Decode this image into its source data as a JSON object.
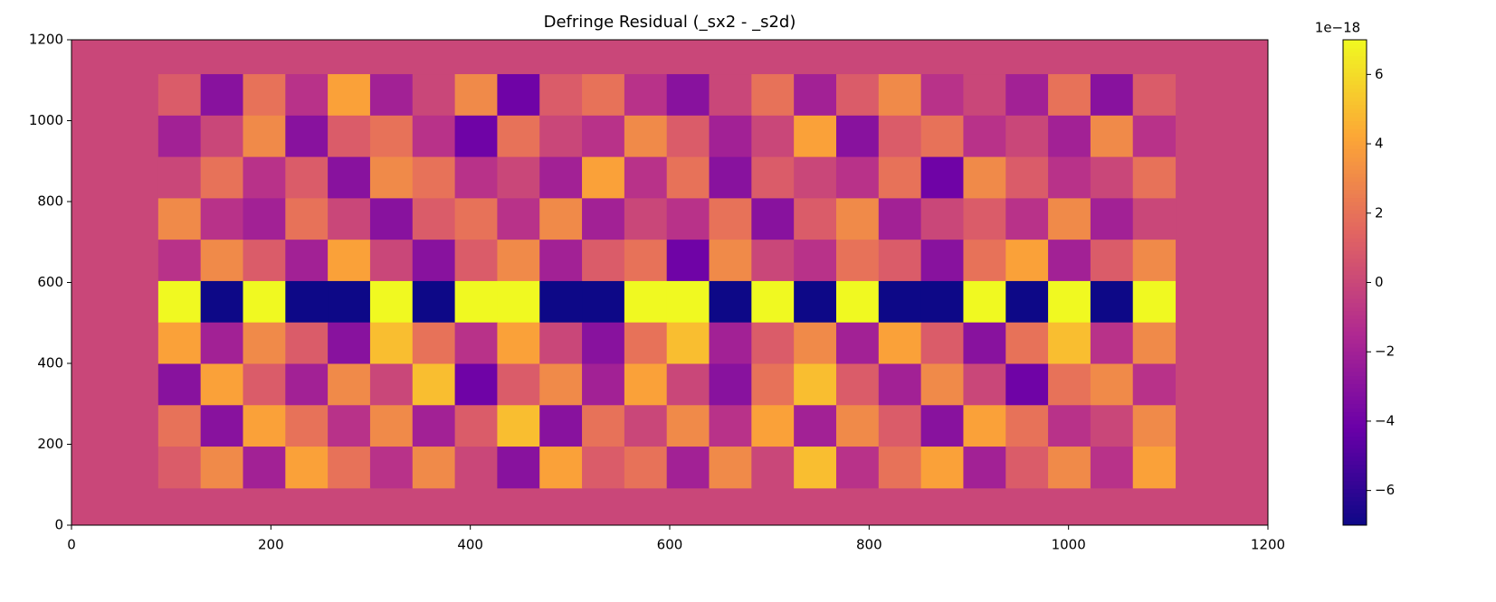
{
  "chart_data": {
    "type": "heatmap",
    "title": "Defringe Residual (_sx2 - _s2d)",
    "xlim": [
      0,
      1200
    ],
    "ylim": [
      0,
      1200
    ],
    "xticks": [
      0,
      200,
      400,
      600,
      800,
      1000,
      1200
    ],
    "yticks": [
      0,
      200,
      400,
      600,
      800,
      1000,
      1200
    ],
    "background_value": 0,
    "z_extent": [
      87,
      1107,
      92,
      1115
    ],
    "z": [
      [
        1,
        -3,
        2,
        -1,
        4,
        -2,
        0,
        3,
        -4,
        1,
        2,
        -1,
        -3,
        0,
        2,
        -2,
        1,
        3,
        -1,
        0,
        -2,
        2,
        -3,
        1
      ],
      [
        -2,
        0,
        3,
        -3,
        1,
        2,
        -1,
        -4,
        2,
        0,
        -1,
        3,
        1,
        -2,
        0,
        4,
        -3,
        1,
        2,
        -1,
        0,
        -2,
        3,
        -1
      ],
      [
        0,
        2,
        -1,
        1,
        -3,
        3,
        2,
        -1,
        0,
        -2,
        4,
        -1,
        2,
        -3,
        1,
        0,
        -1,
        2,
        -4,
        3,
        1,
        -1,
        0,
        2
      ],
      [
        3,
        -1,
        -2,
        2,
        0,
        -3,
        1,
        2,
        -1,
        3,
        -2,
        0,
        -1,
        2,
        -3,
        1,
        3,
        -2,
        0,
        1,
        -1,
        3,
        -2,
        0
      ],
      [
        -1,
        3,
        1,
        -2,
        4,
        0,
        -3,
        1,
        3,
        -2,
        1,
        2,
        -4,
        3,
        0,
        -1,
        2,
        1,
        -3,
        2,
        4,
        -2,
        1,
        3
      ],
      [
        7,
        -7,
        7,
        -7,
        -7,
        7,
        -7,
        7,
        7,
        -7,
        -7,
        7,
        7,
        -7,
        7,
        -7,
        7,
        -7,
        -7,
        7,
        -7,
        7,
        -7,
        7
      ],
      [
        4,
        -2,
        3,
        1,
        -3,
        5,
        2,
        -1,
        4,
        0,
        -3,
        2,
        5,
        -2,
        1,
        3,
        -2,
        4,
        1,
        -3,
        2,
        5,
        -1,
        3
      ],
      [
        -3,
        4,
        1,
        -2,
        3,
        0,
        5,
        -4,
        1,
        3,
        -2,
        4,
        0,
        -3,
        2,
        5,
        1,
        -2,
        3,
        0,
        -4,
        2,
        3,
        -1
      ],
      [
        2,
        -3,
        4,
        2,
        -1,
        3,
        -2,
        1,
        5,
        -3,
        2,
        0,
        3,
        -1,
        4,
        -2,
        3,
        1,
        -3,
        4,
        2,
        -1,
        0,
        3
      ],
      [
        1,
        3,
        -2,
        4,
        2,
        -1,
        3,
        0,
        -3,
        4,
        1,
        2,
        -2,
        3,
        0,
        5,
        -1,
        2,
        4,
        -2,
        1,
        3,
        -1,
        4
      ]
    ],
    "clim": [
      -7,
      7
    ],
    "cticks": [
      {
        "value": -6,
        "label": "−6"
      },
      {
        "value": -4,
        "label": "−4"
      },
      {
        "value": -2,
        "label": "−2"
      },
      0,
      2,
      4,
      6
    ],
    "colorbar_offset": "1e−18",
    "colormap": [
      "#0d0887",
      "#6a00a8",
      "#b12a90",
      "#e16462",
      "#fca636",
      "#f0f921"
    ]
  }
}
